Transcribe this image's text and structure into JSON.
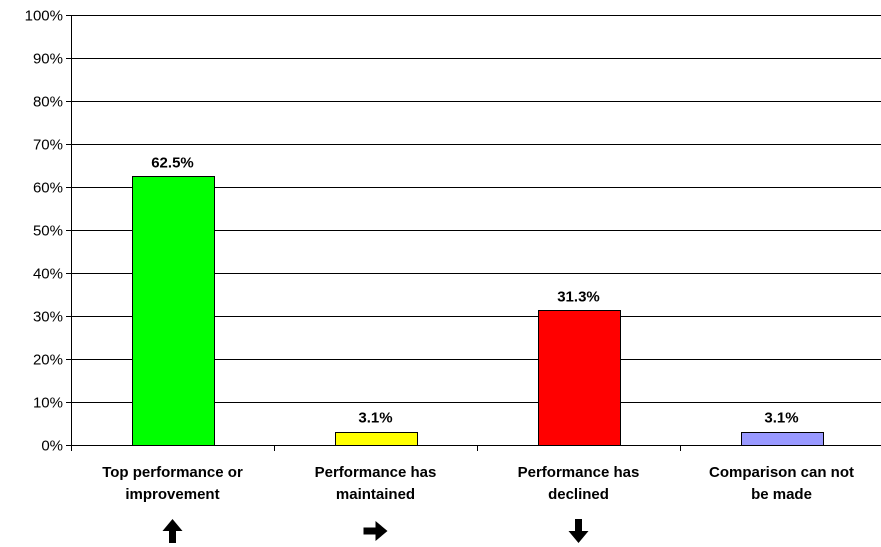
{
  "chart_data": {
    "type": "bar",
    "categories": [
      [
        "Top performance or",
        "improvement"
      ],
      [
        "Performance has",
        "maintained"
      ],
      [
        "Performance has",
        "declined"
      ],
      [
        "Comparison can not",
        "be made"
      ]
    ],
    "values": [
      62.5,
      3.1,
      31.3,
      3.1
    ],
    "data_labels": [
      "62.5%",
      "3.1%",
      "31.3%",
      "3.1%"
    ],
    "bar_colors": [
      "#00FF00",
      "#FFFF00",
      "#FF0000",
      "#9999FF"
    ],
    "category_icons": [
      "arrow-up-icon",
      "arrow-right-icon",
      "arrow-down-icon",
      ""
    ],
    "ylim": [
      0,
      100
    ],
    "yticks": [
      0,
      10,
      20,
      30,
      40,
      50,
      60,
      70,
      80,
      90,
      100
    ],
    "ytick_labels": [
      "0%",
      "10%",
      "20%",
      "30%",
      "40%",
      "50%",
      "60%",
      "70%",
      "80%",
      "90%",
      "100%"
    ],
    "grid": true,
    "title": "",
    "xlabel": "",
    "ylabel": ""
  }
}
